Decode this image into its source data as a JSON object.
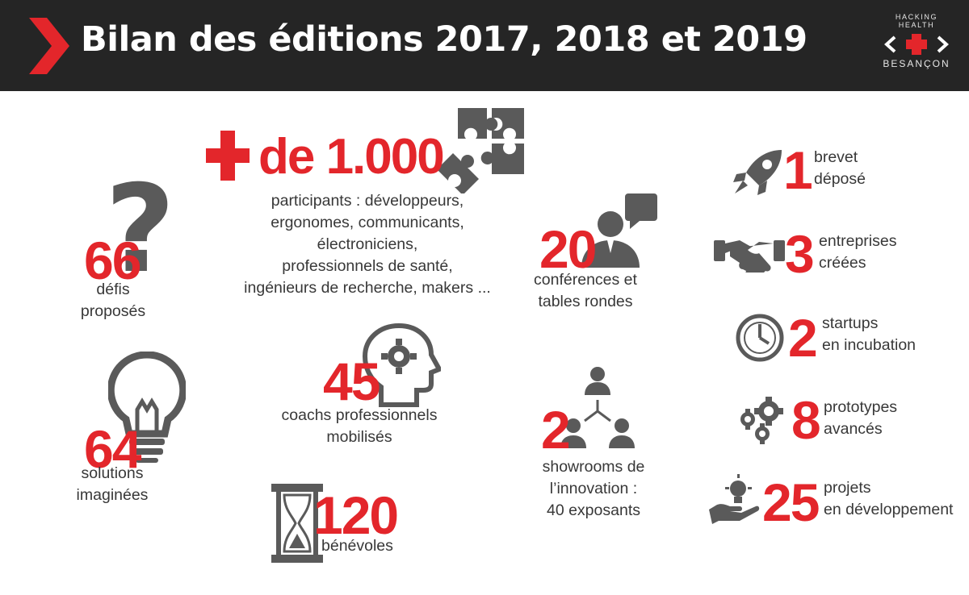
{
  "header": {
    "title": "Bilan des éditions 2017, 2018 et 2019",
    "logo_top": "HACKING HEALTH",
    "logo_bottom": "BESANÇON"
  },
  "colors": {
    "accent": "#e3262b",
    "header_bg": "#252525",
    "icon": "#5a5a5a",
    "text": "#383838"
  },
  "stats": {
    "participants": {
      "value": "de 1.000",
      "lines": [
        "participants : développeurs,",
        "ergonomes, communicants,",
        "électroniciens,",
        "professionnels de santé,",
        "ingénieurs de recherche, makers ..."
      ]
    },
    "defis": {
      "value": "66",
      "lines": [
        "défis",
        "proposés"
      ]
    },
    "solutions": {
      "value": "64",
      "lines": [
        "solutions",
        "imaginées"
      ]
    },
    "coachs": {
      "value": "45",
      "lines": [
        "coachs professionnels",
        "mobilisés"
      ]
    },
    "benevoles": {
      "value": "120",
      "label": "bénévoles"
    },
    "conferences": {
      "value": "20",
      "lines": [
        "conférences et",
        "tables rondes"
      ]
    },
    "showrooms": {
      "value": "2",
      "lines": [
        "showrooms de",
        "l’innovation :",
        "40 exposants"
      ]
    },
    "brevet": {
      "value": "1",
      "lines": [
        "brevet",
        "déposé"
      ]
    },
    "entreprises": {
      "value": "3",
      "lines": [
        "entreprises",
        "créées"
      ]
    },
    "startups": {
      "value": "2",
      "lines": [
        "startups",
        "en incubation"
      ]
    },
    "prototypes": {
      "value": "8",
      "lines": [
        "prototypes",
        "avancés"
      ]
    },
    "projets": {
      "value": "25",
      "lines": [
        "projets",
        "en développement"
      ]
    }
  },
  "icons": [
    "chevron-icon",
    "plus-icon",
    "puzzle-icon",
    "question-mark-icon",
    "lightbulb-icon",
    "head-gear-icon",
    "hourglass-icon",
    "speaker-bubble-icon",
    "network-icon",
    "rocket-icon",
    "handshake-icon",
    "clock-icon",
    "gears-icon",
    "idea-hand-icon"
  ]
}
